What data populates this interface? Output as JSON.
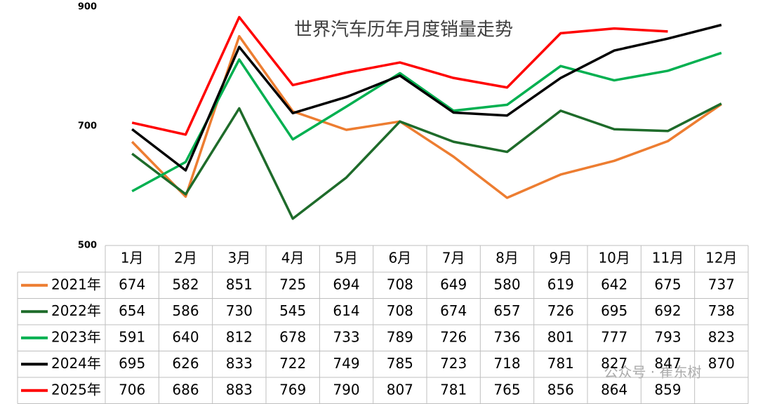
{
  "chart_data": {
    "type": "line",
    "title": "世界汽车历年月度销量走势",
    "categories": [
      "1月",
      "2月",
      "3月",
      "4月",
      "5月",
      "6月",
      "7月",
      "8月",
      "9月",
      "10月",
      "11月",
      "12月"
    ],
    "series": [
      {
        "name": "2021年",
        "color": "#ED7D31",
        "values": [
          674,
          582,
          851,
          725,
          694,
          708,
          649,
          580,
          619,
          642,
          675,
          737
        ]
      },
      {
        "name": "2022年",
        "color": "#1E6B2A",
        "values": [
          654,
          586,
          730,
          545,
          614,
          708,
          674,
          657,
          726,
          695,
          692,
          738
        ]
      },
      {
        "name": "2023年",
        "color": "#00B050",
        "values": [
          591,
          640,
          812,
          678,
          733,
          789,
          726,
          736,
          801,
          777,
          793,
          823
        ]
      },
      {
        "name": "2024年",
        "color": "#000000",
        "values": [
          695,
          626,
          833,
          722,
          749,
          785,
          723,
          718,
          781,
          827,
          847,
          870
        ]
      },
      {
        "name": "2025年",
        "color": "#FF0000",
        "values": [
          706,
          686,
          883,
          769,
          790,
          807,
          781,
          765,
          856,
          864,
          859,
          null
        ]
      }
    ],
    "ylim": [
      500,
      900
    ],
    "yticks": [
      500,
      700,
      900
    ],
    "grid": false,
    "watermark": "公众号 · 崔东树"
  }
}
